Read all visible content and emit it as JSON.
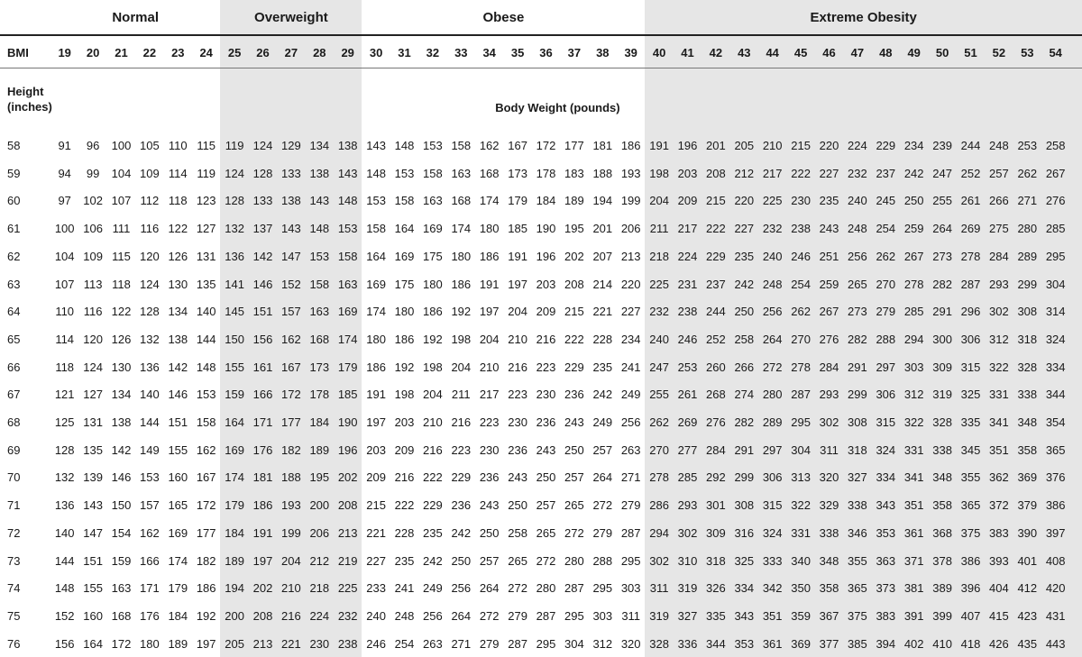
{
  "categories": [
    {
      "label": "Normal",
      "shaded": false
    },
    {
      "label": "Overweight",
      "shaded": true
    },
    {
      "label": "Obese",
      "shaded": false
    },
    {
      "label": "Extreme Obesity",
      "shaded": true
    }
  ],
  "category_spans": [
    [
      19,
      24
    ],
    [
      25,
      29
    ],
    [
      30,
      39
    ],
    [
      40,
      54
    ]
  ],
  "bmi_label": "BMI",
  "bmi_values": [
    19,
    20,
    21,
    22,
    23,
    24,
    25,
    26,
    27,
    28,
    29,
    30,
    31,
    32,
    33,
    34,
    35,
    36,
    37,
    38,
    39,
    40,
    41,
    42,
    43,
    44,
    45,
    46,
    47,
    48,
    49,
    50,
    51,
    52,
    53,
    54
  ],
  "height_label_line1": "Height",
  "height_label_line2": "(inches)",
  "weight_label": "Body Weight (pounds)",
  "rows": [
    {
      "height": "58",
      "weights": [
        91,
        96,
        100,
        105,
        110,
        115,
        119,
        124,
        129,
        134,
        138,
        143,
        148,
        153,
        158,
        162,
        167,
        172,
        177,
        181,
        186,
        191,
        196,
        201,
        205,
        210,
        215,
        220,
        224,
        229,
        234,
        239,
        244,
        248,
        253,
        258
      ]
    },
    {
      "height": "59",
      "weights": [
        94,
        99,
        104,
        109,
        114,
        119,
        124,
        128,
        133,
        138,
        143,
        148,
        153,
        158,
        163,
        168,
        173,
        178,
        183,
        188,
        193,
        198,
        203,
        208,
        212,
        217,
        222,
        227,
        232,
        237,
        242,
        247,
        252,
        257,
        262,
        267
      ]
    },
    {
      "height": "60",
      "weights": [
        97,
        102,
        107,
        112,
        118,
        123,
        128,
        133,
        138,
        143,
        148,
        153,
        158,
        163,
        168,
        174,
        179,
        184,
        189,
        194,
        199,
        204,
        209,
        215,
        220,
        225,
        230,
        235,
        240,
        245,
        250,
        255,
        261,
        266,
        271,
        276
      ]
    },
    {
      "height": "61",
      "weights": [
        100,
        106,
        111,
        116,
        122,
        127,
        132,
        137,
        143,
        148,
        153,
        158,
        164,
        169,
        174,
        180,
        185,
        190,
        195,
        201,
        206,
        211,
        217,
        222,
        227,
        232,
        238,
        243,
        248,
        254,
        259,
        264,
        269,
        275,
        280,
        285
      ]
    },
    {
      "height": "62",
      "weights": [
        104,
        109,
        115,
        120,
        126,
        131,
        136,
        142,
        147,
        153,
        158,
        164,
        169,
        175,
        180,
        186,
        191,
        196,
        202,
        207,
        213,
        218,
        224,
        229,
        235,
        240,
        246,
        251,
        256,
        262,
        267,
        273,
        278,
        284,
        289,
        295
      ]
    },
    {
      "height": "63",
      "weights": [
        107,
        113,
        118,
        124,
        130,
        135,
        141,
        146,
        152,
        158,
        163,
        169,
        175,
        180,
        186,
        191,
        197,
        203,
        208,
        214,
        220,
        225,
        231,
        237,
        242,
        248,
        254,
        259,
        265,
        270,
        278,
        282,
        287,
        293,
        299,
        304
      ]
    },
    {
      "height": "64",
      "weights": [
        110,
        116,
        122,
        128,
        134,
        140,
        145,
        151,
        157,
        163,
        169,
        174,
        180,
        186,
        192,
        197,
        204,
        209,
        215,
        221,
        227,
        232,
        238,
        244,
        250,
        256,
        262,
        267,
        273,
        279,
        285,
        291,
        296,
        302,
        308,
        314
      ]
    },
    {
      "height": "65",
      "weights": [
        114,
        120,
        126,
        132,
        138,
        144,
        150,
        156,
        162,
        168,
        174,
        180,
        186,
        192,
        198,
        204,
        210,
        216,
        222,
        228,
        234,
        240,
        246,
        252,
        258,
        264,
        270,
        276,
        282,
        288,
        294,
        300,
        306,
        312,
        318,
        324
      ]
    },
    {
      "height": "66",
      "weights": [
        118,
        124,
        130,
        136,
        142,
        148,
        155,
        161,
        167,
        173,
        179,
        186,
        192,
        198,
        204,
        210,
        216,
        223,
        229,
        235,
        241,
        247,
        253,
        260,
        266,
        272,
        278,
        284,
        291,
        297,
        303,
        309,
        315,
        322,
        328,
        334
      ]
    },
    {
      "height": "67",
      "weights": [
        121,
        127,
        134,
        140,
        146,
        153,
        159,
        166,
        172,
        178,
        185,
        191,
        198,
        204,
        211,
        217,
        223,
        230,
        236,
        242,
        249,
        255,
        261,
        268,
        274,
        280,
        287,
        293,
        299,
        306,
        312,
        319,
        325,
        331,
        338,
        344
      ]
    },
    {
      "height": "68",
      "weights": [
        125,
        131,
        138,
        144,
        151,
        158,
        164,
        171,
        177,
        184,
        190,
        197,
        203,
        210,
        216,
        223,
        230,
        236,
        243,
        249,
        256,
        262,
        269,
        276,
        282,
        289,
        295,
        302,
        308,
        315,
        322,
        328,
        335,
        341,
        348,
        354
      ]
    },
    {
      "height": "69",
      "weights": [
        128,
        135,
        142,
        149,
        155,
        162,
        169,
        176,
        182,
        189,
        196,
        203,
        209,
        216,
        223,
        230,
        236,
        243,
        250,
        257,
        263,
        270,
        277,
        284,
        291,
        297,
        304,
        311,
        318,
        324,
        331,
        338,
        345,
        351,
        358,
        365
      ]
    },
    {
      "height": "70",
      "weights": [
        132,
        139,
        146,
        153,
        160,
        167,
        174,
        181,
        188,
        195,
        202,
        209,
        216,
        222,
        229,
        236,
        243,
        250,
        257,
        264,
        271,
        278,
        285,
        292,
        299,
        306,
        313,
        320,
        327,
        334,
        341,
        348,
        355,
        362,
        369,
        376
      ]
    },
    {
      "height": "71",
      "weights": [
        136,
        143,
        150,
        157,
        165,
        172,
        179,
        186,
        193,
        200,
        208,
        215,
        222,
        229,
        236,
        243,
        250,
        257,
        265,
        272,
        279,
        286,
        293,
        301,
        308,
        315,
        322,
        329,
        338,
        343,
        351,
        358,
        365,
        372,
        379,
        386
      ]
    },
    {
      "height": "72",
      "weights": [
        140,
        147,
        154,
        162,
        169,
        177,
        184,
        191,
        199,
        206,
        213,
        221,
        228,
        235,
        242,
        250,
        258,
        265,
        272,
        279,
        287,
        294,
        302,
        309,
        316,
        324,
        331,
        338,
        346,
        353,
        361,
        368,
        375,
        383,
        390,
        397
      ]
    },
    {
      "height": "73",
      "weights": [
        144,
        151,
        159,
        166,
        174,
        182,
        189,
        197,
        204,
        212,
        219,
        227,
        235,
        242,
        250,
        257,
        265,
        272,
        280,
        288,
        295,
        302,
        310,
        318,
        325,
        333,
        340,
        348,
        355,
        363,
        371,
        378,
        386,
        393,
        401,
        408
      ]
    },
    {
      "height": "74",
      "weights": [
        148,
        155,
        163,
        171,
        179,
        186,
        194,
        202,
        210,
        218,
        225,
        233,
        241,
        249,
        256,
        264,
        272,
        280,
        287,
        295,
        303,
        311,
        319,
        326,
        334,
        342,
        350,
        358,
        365,
        373,
        381,
        389,
        396,
        404,
        412,
        420
      ]
    },
    {
      "height": "75",
      "weights": [
        152,
        160,
        168,
        176,
        184,
        192,
        200,
        208,
        216,
        224,
        232,
        240,
        248,
        256,
        264,
        272,
        279,
        287,
        295,
        303,
        311,
        319,
        327,
        335,
        343,
        351,
        359,
        367,
        375,
        383,
        391,
        399,
        407,
        415,
        423,
        431
      ]
    },
    {
      "height": "76",
      "weights": [
        156,
        164,
        172,
        180,
        189,
        197,
        205,
        213,
        221,
        230,
        238,
        246,
        254,
        263,
        271,
        279,
        287,
        295,
        304,
        312,
        320,
        328,
        336,
        344,
        353,
        361,
        369,
        377,
        385,
        394,
        402,
        410,
        418,
        426,
        435,
        443
      ]
    }
  ]
}
